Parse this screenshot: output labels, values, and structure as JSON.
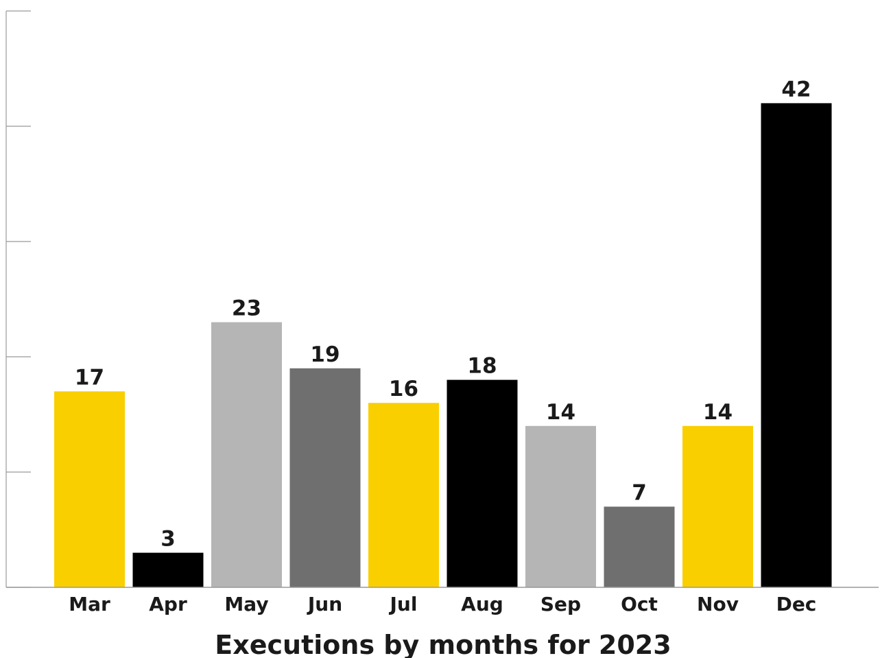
{
  "chart_data": {
    "type": "bar",
    "title": "Executions by months for 2023",
    "xlabel": "",
    "ylabel": "",
    "categories": [
      "Mar",
      "Apr",
      "May",
      "Jun",
      "Jul",
      "Aug",
      "Sep",
      "Oct",
      "Nov",
      "Dec"
    ],
    "values": [
      17,
      3,
      23,
      19,
      16,
      18,
      14,
      7,
      14,
      42
    ],
    "bar_colors": [
      "#f9cf00",
      "#000000",
      "#b5b5b5",
      "#6f6f6f",
      "#f9cf00",
      "#000000",
      "#b5b5b5",
      "#6f6f6f",
      "#f9cf00",
      "#000000"
    ],
    "axis_color": "#999999",
    "ylim": [
      0,
      50
    ],
    "y_ticks": [
      0,
      10,
      20,
      30,
      40,
      50
    ],
    "y_tick_labels_shown": false,
    "grid": false,
    "data_labels": true
  }
}
